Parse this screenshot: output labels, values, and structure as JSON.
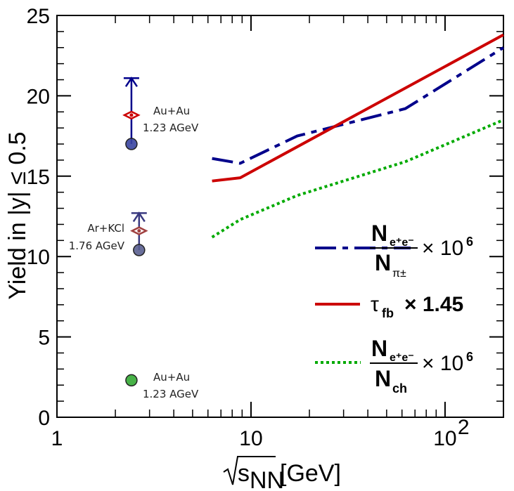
{
  "chart_data": {
    "type": "line",
    "title": "",
    "xlabel": "√s_NN [GeV]",
    "xlabel_main": "s",
    "xlabel_sub": "NN",
    "xlabel_unit": "[GeV]",
    "ylabel": "Yield in |y| ≤ 0.5",
    "x_scale": "log",
    "xlim": [
      1,
      200
    ],
    "ylim": [
      0,
      25
    ],
    "x_ticks": [
      {
        "value": 1,
        "label": "1"
      },
      {
        "value": 10,
        "label": "10"
      },
      {
        "value": 100,
        "label": "10",
        "exp": "2"
      }
    ],
    "y_ticks": [
      {
        "value": 0,
        "label": "0"
      },
      {
        "value": 5,
        "label": "5"
      },
      {
        "value": 10,
        "label": "10"
      },
      {
        "value": 15,
        "label": "15"
      },
      {
        "value": 20,
        "label": "20"
      },
      {
        "value": 25,
        "label": "25"
      }
    ],
    "series": [
      {
        "name": "N_e+e- / N_pi± × 10^6",
        "style": "dashed",
        "color": "#00008b",
        "x": [
          6.3,
          8.8,
          17.3,
          62.4,
          200
        ],
        "y": [
          16.1,
          15.8,
          17.5,
          19.2,
          23.0
        ]
      },
      {
        "name": "tau_fb × 1.45",
        "style": "solid",
        "color": "#cc0000",
        "x": [
          6.3,
          8.8,
          200
        ],
        "y": [
          14.7,
          14.9,
          23.8
        ]
      },
      {
        "name": "N_e+e- / N_ch × 10^6",
        "style": "dotted",
        "color": "#00aa00",
        "x": [
          6.3,
          8.8,
          17.3,
          62.4,
          200
        ],
        "y": [
          11.2,
          12.3,
          13.8,
          15.9,
          18.5
        ]
      }
    ],
    "points": [
      {
        "label": "Au+Au",
        "sub": "1.23 AGeV",
        "x": 2.42,
        "y": 17.0,
        "marker": "circle",
        "color": "#3a45a0",
        "arrow_to": 21.1,
        "arrow_color": "#00008b"
      },
      {
        "label": "Au+Au",
        "sub": "1.23 AGeV",
        "x": 2.42,
        "y": 18.8,
        "marker": "diamond",
        "color": "#cc0000"
      },
      {
        "label": "Ar+KCl",
        "sub": "1.76 AGeV",
        "x": 2.65,
        "y": 10.4,
        "marker": "circle",
        "color": "#5a5f90",
        "arrow_to": 12.7,
        "arrow_color": "#3a3a80"
      },
      {
        "label": "Ar+KCl",
        "sub": "1.76 AGeV",
        "x": 2.65,
        "y": 11.6,
        "marker": "diamond",
        "color": "#a04040"
      },
      {
        "label": "Au+Au",
        "sub": "1.23 AGeV",
        "x": 2.42,
        "y": 2.3,
        "marker": "circle",
        "color": "#33aa33"
      }
    ],
    "annotations": [
      {
        "line1": "Au+Au",
        "line2": "1.23 AGeV",
        "near": "upper"
      },
      {
        "line1": "Ar+KCl",
        "line2": "1.76 AGeV",
        "near": "middle"
      },
      {
        "line1": "Au+Au",
        "line2": "1.23 AGeV",
        "near": "lower"
      }
    ],
    "legend": {
      "placement": "right",
      "items": [
        {
          "num": "N",
          "num_sub": "e⁺e⁻",
          "den": "N",
          "den_sub": "π±",
          "factor": "× 10",
          "factor_exp": "6"
        },
        {
          "sym": "τ",
          "sym_sub": "fb",
          "factor": "× 1.45"
        },
        {
          "num": "N",
          "num_sub": "e⁺e⁻",
          "den": "N",
          "den_sub": "ch",
          "factor": "× 10",
          "factor_exp": "6"
        }
      ]
    }
  }
}
